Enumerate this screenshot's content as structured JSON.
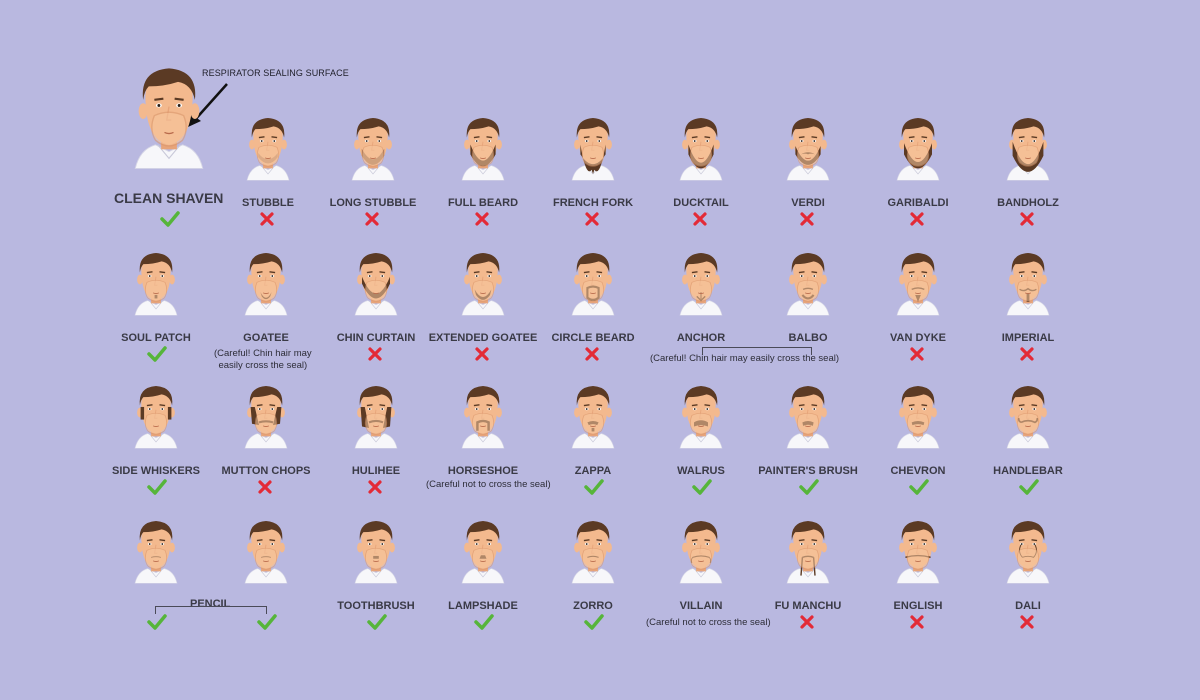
{
  "colors": {
    "background": "#b9b8e0",
    "skin": "#f3b98e",
    "skin_shadow": "#e7a47a",
    "hair": "#5b3a24",
    "shirt": "#f7f7fa",
    "mask": "#f7c69e",
    "check": "#56b53a",
    "cross": "#e32a37"
  },
  "hero": {
    "label": "CLEAN SHAVEN",
    "callout": "RESPIRATOR SEALING SURFACE",
    "allowed": true
  },
  "rows": [
    [
      {
        "label": "STUBBLE",
        "style": "stubble",
        "allowed": false
      },
      {
        "label": "LONG STUBBLE",
        "style": "long-stubble",
        "allowed": false
      },
      {
        "label": "FULL BEARD",
        "style": "full-beard",
        "allowed": false
      },
      {
        "label": "FRENCH FORK",
        "style": "french-fork",
        "allowed": false
      },
      {
        "label": "DUCKTAIL",
        "style": "ducktail",
        "allowed": false
      },
      {
        "label": "VERDI",
        "style": "verdi",
        "allowed": false
      },
      {
        "label": "GARIBALDI",
        "style": "garibaldi",
        "allowed": false
      },
      {
        "label": "BANDHOLZ",
        "style": "bandholz",
        "allowed": false
      }
    ],
    [
      {
        "label": "SOUL PATCH",
        "style": "soul-patch",
        "allowed": true
      },
      {
        "label": "GOATEE",
        "style": "goatee",
        "allowed": null
      },
      {
        "label": "CHIN CURTAIN",
        "style": "chin-curtain",
        "allowed": false
      },
      {
        "label": "EXTENDED GOATEE",
        "style": "extended-goatee",
        "allowed": false
      },
      {
        "label": "CIRCLE BEARD",
        "style": "circle-beard",
        "allowed": false
      },
      {
        "label": "ANCHOR",
        "style": "anchor",
        "allowed": null
      },
      {
        "label": "BALBO",
        "style": "balbo",
        "allowed": null
      },
      {
        "label": "VAN DYKE",
        "style": "van-dyke",
        "allowed": false
      },
      {
        "label": "IMPERIAL",
        "style": "imperial",
        "allowed": false
      }
    ],
    [
      {
        "label": "SIDE WHISKERS",
        "style": "side-whiskers",
        "allowed": true
      },
      {
        "label": "MUTTON CHOPS",
        "style": "mutton-chops",
        "allowed": false
      },
      {
        "label": "HULIHEE",
        "style": "hulihee",
        "allowed": false
      },
      {
        "label": "HORSESHOE",
        "style": "horseshoe",
        "allowed": null
      },
      {
        "label": "ZAPPA",
        "style": "zappa",
        "allowed": true
      },
      {
        "label": "WALRUS",
        "style": "walrus",
        "allowed": true
      },
      {
        "label": "PAINTER'S BRUSH",
        "style": "painters-brush",
        "allowed": true
      },
      {
        "label": "CHEVRON",
        "style": "chevron",
        "allowed": true
      },
      {
        "label": "HANDLEBAR",
        "style": "handlebar",
        "allowed": true
      }
    ],
    [
      {
        "label": "",
        "style": "pencil",
        "allowed": true
      },
      {
        "label": "",
        "style": "pencil",
        "allowed": true
      },
      {
        "label": "TOOTHBRUSH",
        "style": "toothbrush",
        "allowed": true
      },
      {
        "label": "LAMPSHADE",
        "style": "lampshade",
        "allowed": true
      },
      {
        "label": "ZORRO",
        "style": "zorro",
        "allowed": true
      },
      {
        "label": "VILLAIN",
        "style": "villain",
        "allowed": null
      },
      {
        "label": "FU MANCHU",
        "style": "fu-manchu",
        "allowed": false
      },
      {
        "label": "ENGLISH",
        "style": "english",
        "allowed": false
      },
      {
        "label": "DALI",
        "style": "dali",
        "allowed": false
      }
    ]
  ],
  "notes": {
    "goatee": "(Careful! Chin hair may\neasily cross the seal)",
    "anchor_balbo": "(Careful! Chin hair may easily cross the seal)",
    "horseshoe": "(Careful not to cross the seal)",
    "villain": "(Careful not to cross the seal)",
    "pencil": "PENCIL"
  }
}
